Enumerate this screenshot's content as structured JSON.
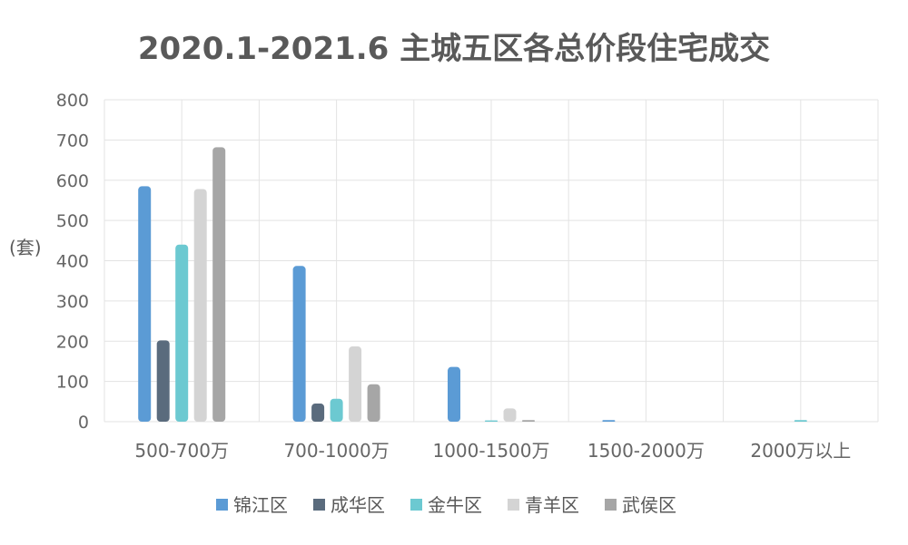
{
  "chart_data": {
    "type": "bar",
    "title": "2020.1-2021.6 主城五区各总价段住宅成交",
    "ylabel": "(套)",
    "xlabel": "",
    "ylim": [
      0,
      800
    ],
    "yticks": [
      0,
      100,
      200,
      300,
      400,
      500,
      600,
      700,
      800
    ],
    "grid": true,
    "legend_position": "bottom",
    "categories": [
      "500-700万",
      "700-1000万",
      "1000-1500万",
      "1500-2000万",
      "2000万以上"
    ],
    "series": [
      {
        "name": "锦江区",
        "color": "#5b9bd5",
        "values": [
          585,
          387,
          136,
          4,
          0
        ]
      },
      {
        "name": "成华区",
        "color": "#5a6b7d",
        "values": [
          202,
          45,
          0,
          0,
          0
        ]
      },
      {
        "name": "金牛区",
        "color": "#6cc9d1",
        "values": [
          440,
          57,
          3,
          0,
          4
        ]
      },
      {
        "name": "青羊区",
        "color": "#d4d4d4",
        "values": [
          578,
          187,
          33,
          0,
          0
        ]
      },
      {
        "name": "武侯区",
        "color": "#a6a6a6",
        "values": [
          682,
          93,
          4,
          0,
          0
        ]
      }
    ]
  }
}
